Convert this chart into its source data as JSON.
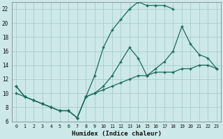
{
  "xlabel": "Humidex (Indice chaleur)",
  "background_color": "#cce8e8",
  "grid_color": "#aacccc",
  "line_color": "#1a6b5a",
  "xlim": [
    -0.5,
    23.5
  ],
  "ylim": [
    6,
    23
  ],
  "xticks": [
    0,
    1,
    2,
    3,
    4,
    5,
    6,
    7,
    8,
    9,
    10,
    11,
    12,
    13,
    14,
    15,
    16,
    17,
    18,
    19,
    20,
    21,
    22,
    23
  ],
  "yticks": [
    6,
    8,
    10,
    12,
    14,
    16,
    18,
    20,
    22
  ],
  "line1_x": [
    0,
    1,
    2,
    3,
    4,
    5,
    6,
    7,
    8,
    9,
    10,
    11,
    12,
    13,
    14,
    15,
    16,
    17,
    18
  ],
  "line1_y": [
    11,
    9.5,
    9.0,
    8.5,
    8.0,
    7.5,
    7.5,
    6.5,
    9.5,
    12.5,
    16.5,
    19.0,
    20.5,
    22.0,
    23.0,
    22.5,
    22.5,
    22.5,
    22.0
  ],
  "line2_x": [
    0,
    1,
    2,
    3,
    4,
    5,
    6,
    7,
    8,
    9,
    10,
    11,
    12,
    13,
    14,
    15,
    16,
    17,
    18,
    19,
    20,
    21,
    22,
    23
  ],
  "line2_y": [
    11,
    9.5,
    9.0,
    8.5,
    8.0,
    7.5,
    7.5,
    6.5,
    9.5,
    10.0,
    11.0,
    12.5,
    14.5,
    16.5,
    15.0,
    12.5,
    13.5,
    14.5,
    16.0,
    19.5,
    17.0,
    15.5,
    15.0,
    13.5
  ],
  "line3_x": [
    0,
    1,
    2,
    3,
    4,
    5,
    6,
    7,
    8,
    9,
    10,
    11,
    12,
    13,
    14,
    15,
    16,
    17,
    18,
    19,
    20,
    21,
    22,
    23
  ],
  "line3_y": [
    10.0,
    9.5,
    9.0,
    8.5,
    8.0,
    7.5,
    7.5,
    6.5,
    9.5,
    10.0,
    10.5,
    11.0,
    11.5,
    12.0,
    12.5,
    12.5,
    13.0,
    13.0,
    13.0,
    13.5,
    13.5,
    14.0,
    14.0,
    13.5
  ]
}
